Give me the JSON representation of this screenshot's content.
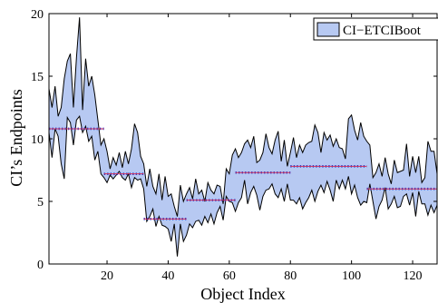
{
  "chart_data": {
    "type": "area",
    "title": "",
    "xlabel": "Object Index",
    "ylabel": "CI’s Endpoints",
    "xlim": [
      1,
      128
    ],
    "ylim": [
      0,
      20
    ],
    "x_ticks": [
      20,
      40,
      60,
      80,
      100,
      120
    ],
    "y_ticks": [
      0,
      5,
      10,
      15,
      20
    ],
    "legend": {
      "placement": "top-right",
      "entries": [
        "CI−ETCIBoot"
      ]
    },
    "colors": {
      "band": "#b7c9f2",
      "band_edge": "#000000",
      "step_red": "#d0305a",
      "step_blue": "#1b3bd6"
    },
    "series": [
      {
        "name": "CI−ETCIBoot",
        "x": [
          1,
          2,
          3,
          4,
          5,
          6,
          7,
          8,
          9,
          10,
          11,
          12,
          13,
          14,
          15,
          16,
          17,
          18,
          19,
          20,
          21,
          22,
          23,
          24,
          25,
          26,
          27,
          28,
          29,
          30,
          31,
          32,
          33,
          34,
          35,
          36,
          37,
          38,
          39,
          40,
          41,
          42,
          43,
          44,
          45,
          46,
          47,
          48,
          49,
          50,
          51,
          52,
          53,
          54,
          55,
          56,
          57,
          58,
          59,
          60,
          61,
          62,
          63,
          64,
          65,
          66,
          67,
          68,
          69,
          70,
          71,
          72,
          73,
          74,
          75,
          76,
          77,
          78,
          79,
          80,
          81,
          82,
          83,
          84,
          85,
          86,
          87,
          88,
          89,
          90,
          91,
          92,
          93,
          94,
          95,
          96,
          97,
          98,
          99,
          100,
          101,
          102,
          103,
          104,
          105,
          106,
          107,
          108,
          109,
          110,
          111,
          112,
          113,
          114,
          115,
          116,
          117,
          118,
          119,
          120,
          121,
          122,
          123,
          124,
          125,
          126,
          127,
          128
        ],
        "upper": [
          14.0,
          12.5,
          14.2,
          11.8,
          12.5,
          14.8,
          16.2,
          16.8,
          12.5,
          16.5,
          19.7,
          12.3,
          16.4,
          14.2,
          15.0,
          13.5,
          11.5,
          9.5,
          10.0,
          9.0,
          7.6,
          8.5,
          7.9,
          8.9,
          7.7,
          9.0,
          8.0,
          9.2,
          11.2,
          10.5,
          8.6,
          8.0,
          6.2,
          7.6,
          6.2,
          5.6,
          7.2,
          5.1,
          7.0,
          5.4,
          5.6,
          4.6,
          3.8,
          6.3,
          5.0,
          5.6,
          6.1,
          5.2,
          6.8,
          5.6,
          5.9,
          5.0,
          6.5,
          5.9,
          5.6,
          6.3,
          6.2,
          4.8,
          7.6,
          7.2,
          8.7,
          9.2,
          8.5,
          8.9,
          9.6,
          9.9,
          9.3,
          10.2,
          8.1,
          8.3,
          8.9,
          10.4,
          9.3,
          8.8,
          9.9,
          10.6,
          8.2,
          9.9,
          7.8,
          8.9,
          10.1,
          8.5,
          9.5,
          8.9,
          9.5,
          9.7,
          9.8,
          11.1,
          10.5,
          8.9,
          10.5,
          9.9,
          10.3,
          9.4,
          10.0,
          9.3,
          9.2,
          8.4,
          11.6,
          11.9,
          10.7,
          9.9,
          11.3,
          10.2,
          9.8,
          9.5,
          6.9,
          7.3,
          8.0,
          7.0,
          8.5,
          7.2,
          6.4,
          8.3,
          7.3,
          7.4,
          7.5,
          9.6,
          7.0,
          8.6,
          7.3,
          8.6,
          6.5,
          6.9,
          9.8,
          9.0,
          9.0,
          7.2
        ],
        "lower": [
          10.5,
          8.5,
          10.8,
          10.2,
          8.0,
          6.8,
          11.7,
          11.3,
          9.5,
          11.5,
          11.8,
          10.5,
          11.0,
          9.8,
          10.2,
          8.3,
          9.0,
          7.2,
          6.9,
          6.5,
          7.1,
          6.8,
          7.1,
          7.4,
          6.9,
          6.7,
          7.2,
          6.1,
          6.9,
          6.7,
          6.8,
          6.0,
          3.4,
          3.8,
          4.4,
          3.0,
          3.8,
          3.1,
          3.0,
          2.8,
          1.8,
          3.2,
          0.6,
          3.2,
          1.8,
          2.3,
          3.2,
          2.9,
          3.4,
          3.5,
          3.1,
          3.8,
          3.3,
          4.0,
          3.2,
          4.1,
          4.6,
          3.5,
          5.4,
          5.0,
          4.9,
          4.2,
          4.9,
          5.3,
          6.7,
          4.8,
          5.7,
          6.2,
          5.5,
          4.3,
          5.4,
          5.9,
          6.0,
          6.4,
          5.6,
          5.3,
          6.0,
          5.0,
          6.4,
          5.1,
          5.1,
          4.8,
          5.3,
          4.4,
          4.9,
          5.3,
          5.9,
          5.0,
          5.8,
          6.3,
          5.7,
          6.6,
          5.9,
          5.0,
          6.7,
          6.0,
          6.7,
          6.0,
          7.0,
          5.6,
          6.3,
          5.3,
          4.7,
          5.0,
          4.9,
          6.4,
          5.0,
          3.6,
          4.6,
          5.1,
          6.1,
          4.4,
          4.8,
          5.4,
          4.5,
          4.6,
          5.4,
          5.6,
          4.7,
          5.7,
          3.8,
          5.8,
          4.8,
          4.8,
          3.9,
          4.7,
          4.1,
          4.7
        ]
      }
    ],
    "steps": [
      {
        "x_start": 1,
        "x_end": 19,
        "y": 10.8
      },
      {
        "x_start": 19,
        "x_end": 32,
        "y": 7.2
      },
      {
        "x_start": 32,
        "x_end": 46,
        "y": 3.6
      },
      {
        "x_start": 46,
        "x_end": 62,
        "y": 5.1
      },
      {
        "x_start": 62,
        "x_end": 80,
        "y": 7.3
      },
      {
        "x_start": 80,
        "x_end": 105,
        "y": 7.8
      },
      {
        "x_start": 105,
        "x_end": 128,
        "y": 6.0
      }
    ]
  }
}
